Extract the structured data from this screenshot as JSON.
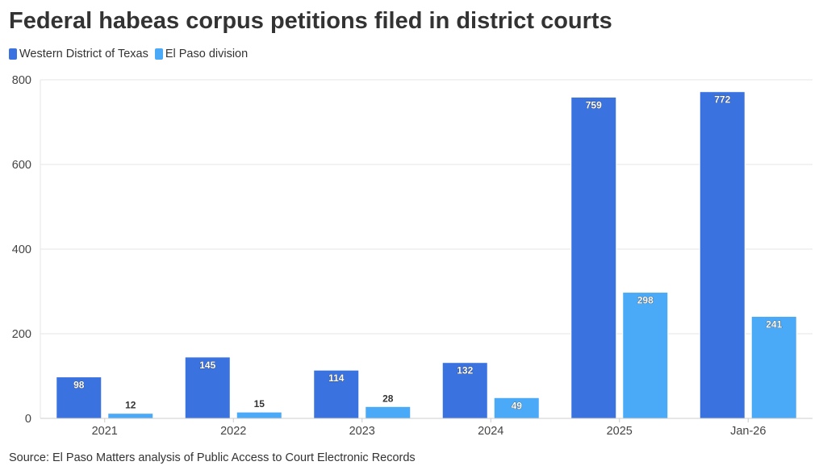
{
  "chart_data": {
    "type": "bar",
    "title": "Federal habeas corpus petitions filed in district courts",
    "categories": [
      "2021",
      "2022",
      "2023",
      "2024",
      "2025",
      "Jan-26"
    ],
    "series": [
      {
        "name": "Western District of Texas",
        "color": "#3a72e0",
        "values": [
          98,
          145,
          114,
          132,
          759,
          772
        ]
      },
      {
        "name": "El Paso division",
        "color": "#4aaaf8",
        "values": [
          12,
          15,
          28,
          49,
          298,
          241
        ]
      }
    ],
    "y_ticks": [
      "0",
      "200",
      "400",
      "600",
      "800"
    ],
    "ylim": [
      0,
      800
    ],
    "xlabel": "",
    "ylabel": "",
    "grid": true,
    "legend_position": "top-left",
    "source": "Source: El Paso Matters analysis of Public Access to Court Electronic Records"
  }
}
